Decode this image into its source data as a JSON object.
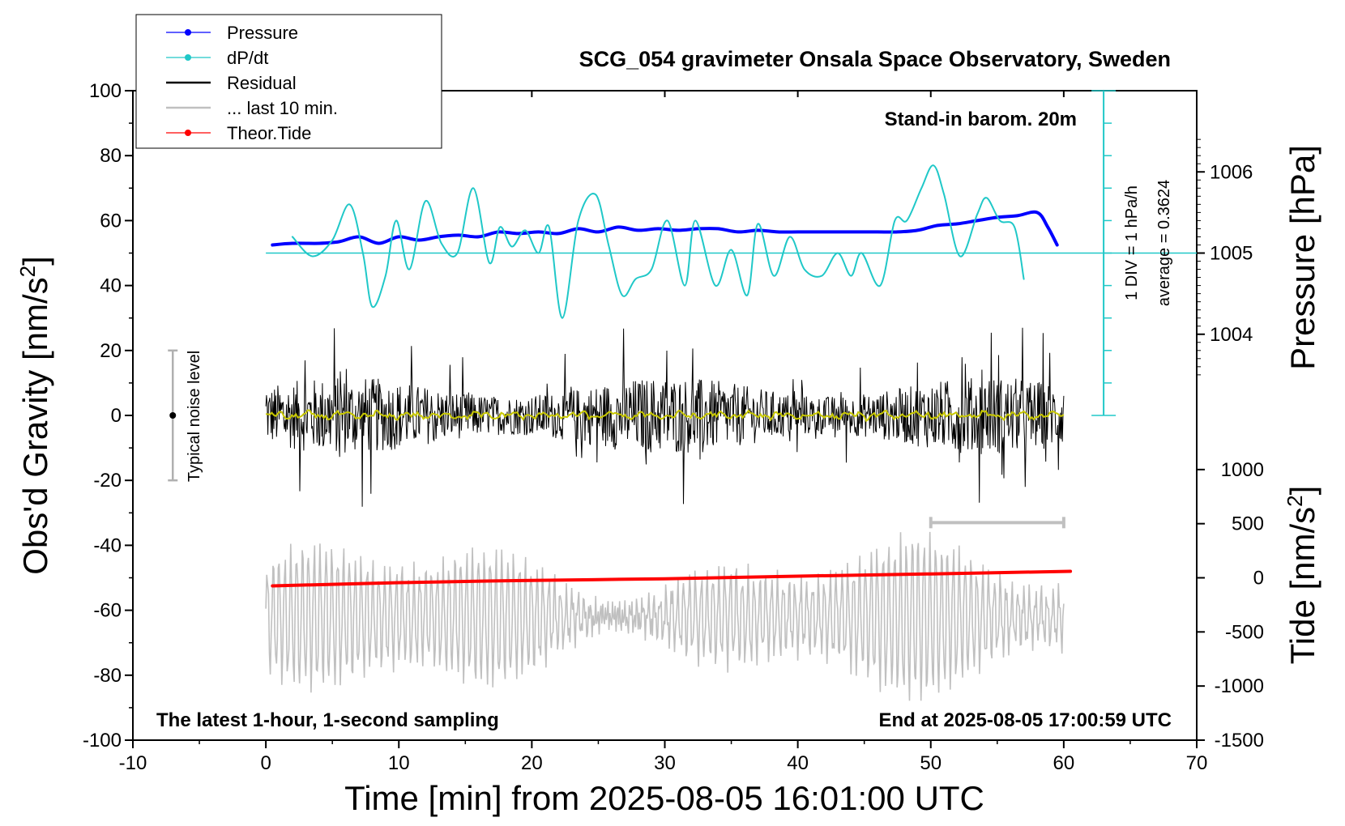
{
  "chart_data": {
    "type": "line",
    "title": "SCG_054 gravimeter Onsala Space Observatory, Sweden",
    "xlabel": "Time [min] from 2025-08-05 16:01:00 UTC",
    "ylabel_left": "Obs'd Gravity [nm/s",
    "ylabel_left_sup": "2",
    "ylabel_left_close": "]",
    "ylabel_right_top": "Pressure [hPa]",
    "ylabel_right_bottom": "Tide [nm/s",
    "ylabel_right_bottom_sup": "2",
    "ylabel_right_bottom_close": "]",
    "xlim": [
      -10,
      70
    ],
    "ylim": [
      -100,
      100
    ],
    "x_ticks": [
      -10,
      0,
      10,
      20,
      30,
      40,
      50,
      60,
      70
    ],
    "y_ticks": [
      -100,
      -80,
      -60,
      -40,
      -20,
      0,
      20,
      40,
      60,
      80,
      100
    ],
    "pressure_ticks": [
      1004,
      1005,
      1006
    ],
    "pressure_scale": {
      "ref_value": 1005,
      "ref_gravity": 50,
      "gravity_per_hpa": 25
    },
    "tide_ticks": [
      1000,
      500,
      0,
      -500,
      -1000,
      -1500
    ],
    "tide_scale": {
      "ref_value": 0,
      "ref_gravity": -50,
      "gravity_per_unit": 0.03333
    },
    "annotations": {
      "barometer": "Stand-in barom. 20m",
      "div_label": "1 DIV = 1 hPa/h",
      "average_label": "average = 0.3624",
      "noise_label": "Typical noise level",
      "latest_label": "The latest 1-hour, 1-second sampling",
      "end_label": "End at 2025-08-05 17:00:59 UTC"
    },
    "noise_bar": {
      "x": -7,
      "center": 0,
      "half_range": 20
    },
    "last10_bar": {
      "x_start": 50,
      "x_end": 60,
      "y": -33
    },
    "dpdt_baseline": 50,
    "dpdt_scale_top": 100,
    "dpdt_scale_bottom": 0,
    "dpdt_scale_x": 63,
    "legend": [
      {
        "name": "Pressure",
        "color": "#0000ff",
        "marker": true
      },
      {
        "name": "dP/dt",
        "color": "#20c8c8",
        "marker": true
      },
      {
        "name": "Residual",
        "color": "#000000",
        "marker": false
      },
      {
        "name": "... last 10 min.",
        "color": "#c0c0c0",
        "marker": false
      },
      {
        "name": "Theor.Tide",
        "color": "#ff0000",
        "marker": true
      }
    ],
    "series": [
      {
        "name": "Pressure",
        "unit_axis": "gravity",
        "color": "#0000ff",
        "x": [
          0.5,
          2,
          4,
          5.5,
          7,
          8.5,
          10,
          11.5,
          13,
          14.5,
          16,
          17.5,
          19,
          20.5,
          22,
          23.5,
          25,
          26.5,
          28,
          29.5,
          31,
          32.5,
          34,
          35.5,
          37,
          38.5,
          40,
          41.5,
          43,
          44.5,
          46,
          47.5,
          49,
          50.5,
          52,
          53.5,
          55,
          56.5,
          58,
          58.8,
          59.5
        ],
        "y": [
          52.5,
          53,
          53,
          53.5,
          55,
          53,
          55,
          54,
          55,
          55.5,
          55,
          56.5,
          56,
          56.5,
          56,
          57.5,
          56.5,
          58,
          57,
          57.5,
          57,
          57.5,
          57.5,
          56.5,
          57,
          56.5,
          56.5,
          56.5,
          56.5,
          56.5,
          56.5,
          56.5,
          57,
          58.5,
          59,
          60,
          61,
          61.5,
          62.5,
          58,
          52.5
        ]
      },
      {
        "name": "dP/dt",
        "unit_axis": "gravity",
        "color": "#20c8c8",
        "x": [
          2,
          3.5,
          5,
          6.3,
          7.3,
          8,
          9,
          9.8,
          10.8,
          12,
          13.2,
          14.4,
          15.6,
          16.8,
          17.6,
          18.5,
          19.5,
          20.5,
          21.3,
          22.3,
          23.5,
          24.8,
          25.8,
          26.8,
          27.8,
          29,
          30.2,
          31.5,
          32.3,
          33.8,
          35,
          36.2,
          37,
          38.2,
          39.4,
          40.5,
          41.8,
          43,
          44,
          44.8,
          46.2,
          47.3,
          48.2,
          49.3,
          50.2,
          51,
          52.2,
          53.5,
          54.2,
          55.2,
          56.3,
          57
        ],
        "y": [
          55,
          49,
          54,
          65,
          50,
          33.5,
          43,
          60,
          45,
          66,
          53,
          50,
          70,
          47,
          58,
          52,
          57,
          50,
          58,
          30,
          60,
          68,
          52,
          37,
          42,
          45,
          60,
          40,
          60,
          40,
          51,
          37,
          59,
          43,
          55,
          45,
          43,
          50,
          43,
          50,
          40,
          60,
          60,
          70,
          77,
          68,
          49,
          62,
          67,
          60,
          58,
          42
        ]
      },
      {
        "name": "Theor.Tide",
        "unit_axis": "gravity",
        "color": "#ff0000",
        "x": [
          0.5,
          10,
          20,
          30,
          40,
          50,
          60.5
        ],
        "y": [
          -52.5,
          -51.5,
          -50.8,
          -50.3,
          -49.5,
          -48.8,
          -48
        ]
      }
    ]
  }
}
